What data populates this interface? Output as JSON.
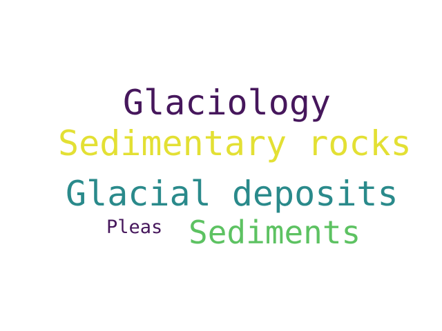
{
  "words": [
    {
      "text": "Glaciology",
      "color": "#46175c"
    },
    {
      "text": "Sedimentary rocks",
      "color": "#e3e034"
    },
    {
      "text": "Glacial deposits",
      "color": "#2a8a8b"
    },
    {
      "text": "Pleas",
      "color": "#46175c"
    },
    {
      "text": "Sediments",
      "color": "#5dc262"
    }
  ]
}
